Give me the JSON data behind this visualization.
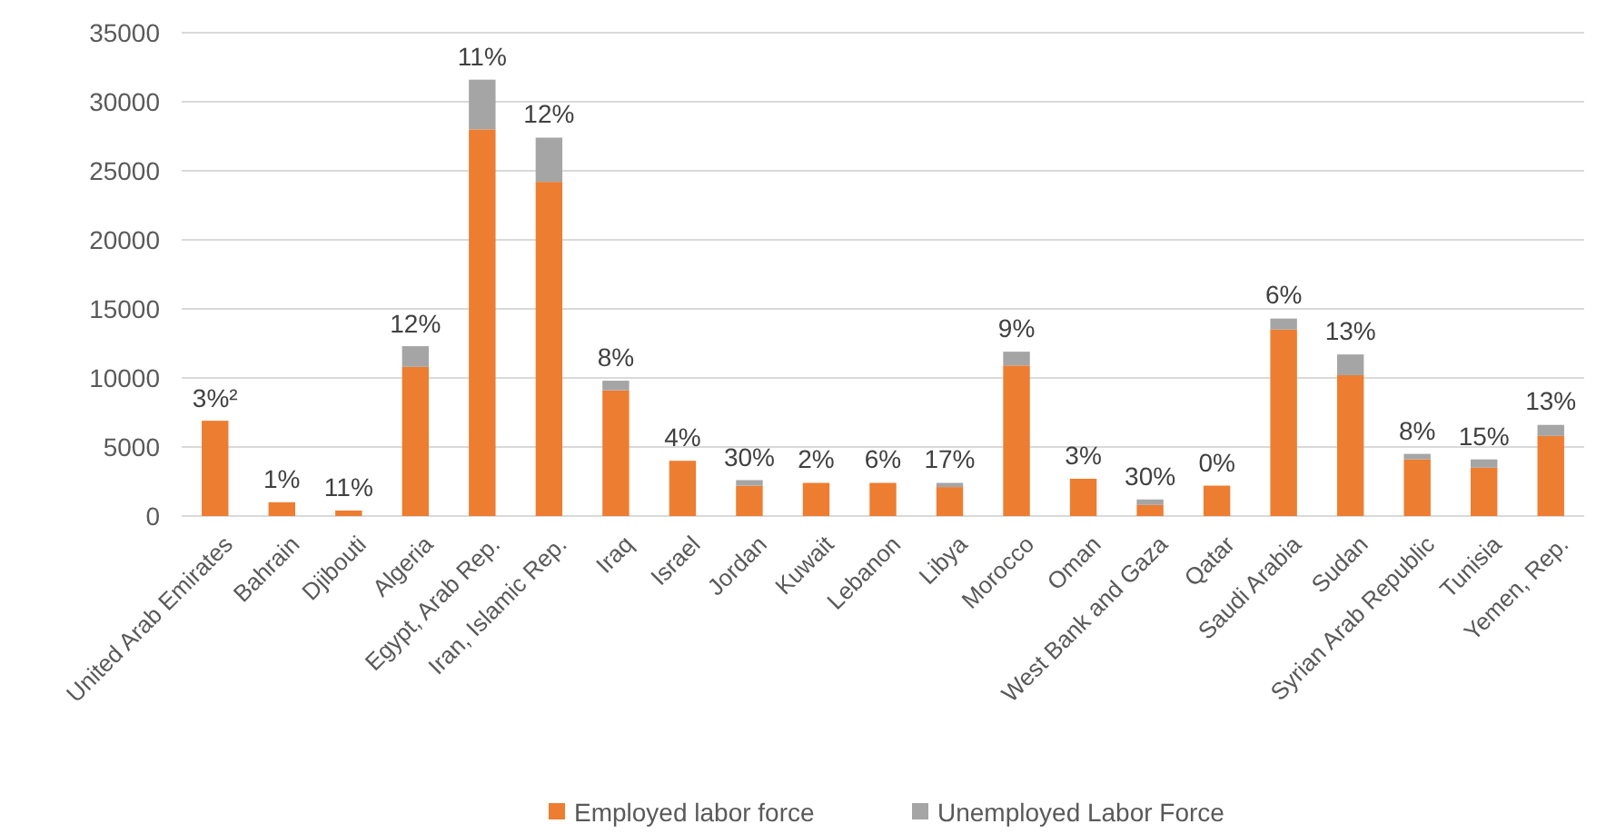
{
  "chart_data": {
    "type": "bar",
    "stacked": true,
    "categories": [
      "United Arab Emirates",
      "Bahrain",
      "Djibouti",
      "Algeria",
      "Egypt, Arab Rep.",
      "Iran, Islamic Rep.",
      "Iraq",
      "Israel",
      "Jordan",
      "Kuwait",
      "Lebanon",
      "Libya",
      "Morocco",
      "Oman",
      "West Bank and Gaza",
      "Qatar",
      "Saudi Arabia",
      "Sudan",
      "Syrian Arab Republic",
      "Tunisia",
      "Yemen, Rep."
    ],
    "series": [
      {
        "name": "Employed labor force",
        "color": "#ed7d31",
        "values": [
          6900,
          1000,
          400,
          10800,
          28000,
          24200,
          9100,
          4000,
          2200,
          2400,
          2400,
          2100,
          10900,
          2700,
          800,
          2200,
          13500,
          10200,
          4100,
          3500,
          5800
        ]
      },
      {
        "name": "Unemployed Labor Force",
        "color": "#a5a5a5",
        "values": [
          null,
          null,
          null,
          1500,
          3600,
          3200,
          700,
          null,
          400,
          null,
          null,
          300,
          1000,
          null,
          400,
          0,
          800,
          1500,
          400,
          600,
          800
        ]
      }
    ],
    "ylim": [
      0,
      35000
    ],
    "yticks": [
      0,
      5000,
      10000,
      15000,
      20000,
      25000,
      30000,
      35000
    ],
    "grid": "y",
    "legend": "bottom",
    "annotations": [
      {
        "text": "3%²",
        "x": "United Arab Emirates",
        "y": 6860
      },
      {
        "text": "1%",
        "x": "Bahrain",
        "y": 1010
      },
      {
        "text": "11%",
        "x": "Djibouti",
        "y": 400
      },
      {
        "text": "12%",
        "x": "Algeria",
        "y": 12260
      },
      {
        "text": "11%",
        "x": "Egypt, Arab Rep.",
        "y": 31560
      },
      {
        "text": "12%",
        "x": "Iran, Islamic Rep.",
        "y": 27430
      },
      {
        "text": "8%",
        "x": "Iraq",
        "y": 9800
      },
      {
        "text": "4%",
        "x": "Israel",
        "y": 4000
      },
      {
        "text": "30%",
        "x": "Jordan",
        "y": 2590
      },
      {
        "text": "2%",
        "x": "Kuwait",
        "y": 2420
      },
      {
        "text": "6%",
        "x": "Lebanon",
        "y": 2420
      },
      {
        "text": "17%",
        "x": "Libya",
        "y": 2420
      },
      {
        "text": "9%",
        "x": "Morocco",
        "y": 11910
      },
      {
        "text": "3%",
        "x": "Oman",
        "y": 2680
      },
      {
        "text": "30%",
        "x": "West Bank and Gaza",
        "y": 1190
      },
      {
        "text": "0%",
        "x": "Qatar",
        "y": 2150
      },
      {
        "text": "6%",
        "x": "Saudi Arabia",
        "y": 14330
      },
      {
        "text": "13%",
        "x": "Sudan",
        "y": 11690
      },
      {
        "text": "8%",
        "x": "Syrian Arab Republic",
        "y": 4480
      },
      {
        "text": "15%",
        "x": "Tunisia",
        "y": 4090
      },
      {
        "text": "13%",
        "x": "Yemen, Rep.",
        "y": 6640
      }
    ]
  }
}
